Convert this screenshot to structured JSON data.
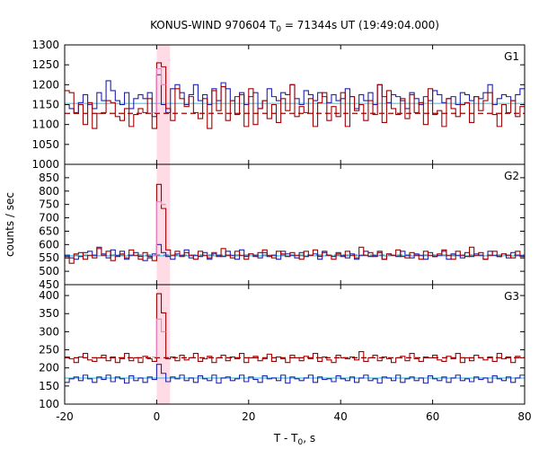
{
  "chart_data": {
    "type": "line",
    "title": {
      "main": "KONUS-WIND 970604 T",
      "sub": "0",
      "rest": " = 71344s UT (19:49:04.000)"
    },
    "xlabel": {
      "main": "T - T",
      "sub": "0",
      "rest": ", s"
    },
    "ylabel": "counts / sec",
    "xlim": [
      -20,
      80
    ],
    "xticks": [
      -20,
      0,
      20,
      40,
      60,
      80
    ],
    "bin_width": 1.0,
    "highlight_interval": [
      0.0,
      2.9
    ],
    "colors": {
      "red_series": "#a00000",
      "blue_series": "#2020b0",
      "cyan_line": "#40c8e8",
      "highlight": "#ffd0dc",
      "pink_series": "#f080c0"
    },
    "panels": [
      {
        "label": "G1",
        "ylim": [
          1000,
          1300
        ],
        "yticks": [
          1000,
          1050,
          1100,
          1150,
          1200,
          1250,
          1300
        ],
        "bg_level_red": 1128,
        "bg_level_blue": 1153,
        "red_values": [
          1185,
          1180,
          1128,
          1150,
          1100,
          1155,
          1090,
          1128,
          1130,
          1160,
          1155,
          1120,
          1110,
          1140,
          1095,
          1125,
          1140,
          1130,
          1165,
          1090,
          1255,
          1245,
          1140,
          1110,
          1190,
          1165,
          1145,
          1170,
          1130,
          1115,
          1165,
          1090,
          1185,
          1135,
          1195,
          1110,
          1160,
          1125,
          1175,
          1095,
          1190,
          1100,
          1140,
          1160,
          1115,
          1150,
          1105,
          1165,
          1135,
          1200,
          1120,
          1145,
          1130,
          1165,
          1095,
          1155,
          1180,
          1110,
          1145,
          1120,
          1180,
          1095,
          1170,
          1135,
          1150,
          1110,
          1160,
          1125,
          1200,
          1105,
          1185,
          1140,
          1125,
          1165,
          1115,
          1175,
          1130,
          1155,
          1100,
          1190,
          1125,
          1135,
          1095,
          1165,
          1140,
          1120,
          1150,
          1155,
          1105,
          1170,
          1135,
          1160,
          1180,
          1125,
          1095,
          1150,
          1130,
          1160,
          1120,
          1145
        ],
        "blue_values": [
          1150,
          1140,
          1130,
          1155,
          1175,
          1150,
          1140,
          1180,
          1160,
          1210,
          1185,
          1160,
          1150,
          1180,
          1140,
          1165,
          1175,
          1165,
          1180,
          1120,
          1225,
          1150,
          1130,
          1190,
          1200,
          1180,
          1150,
          1175,
          1200,
          1160,
          1175,
          1150,
          1190,
          1160,
          1205,
          1190,
          1160,
          1170,
          1180,
          1150,
          1170,
          1180,
          1140,
          1160,
          1190,
          1170,
          1160,
          1180,
          1175,
          1200,
          1165,
          1150,
          1185,
          1175,
          1160,
          1180,
          1170,
          1155,
          1175,
          1160,
          1165,
          1190,
          1170,
          1140,
          1175,
          1160,
          1180,
          1150,
          1200,
          1170,
          1155,
          1175,
          1170,
          1160,
          1140,
          1180,
          1165,
          1150,
          1170,
          1160,
          1185,
          1175,
          1155,
          1165,
          1170,
          1150,
          1180,
          1175,
          1160,
          1170,
          1165,
          1180,
          1200,
          1150,
          1165,
          1175,
          1170,
          1160,
          1175,
          1190
        ],
        "pink_values": [
          1130,
          1240,
          1200
        ]
      },
      {
        "label": "G2",
        "ylim": [
          450,
          900
        ],
        "yticks": [
          450,
          500,
          550,
          600,
          650,
          700,
          750,
          800,
          850
        ],
        "bg_level_red": 560,
        "bg_level_blue": 558,
        "red_values": [
          555,
          530,
          565,
          570,
          545,
          560,
          550,
          585,
          560,
          575,
          540,
          555,
          565,
          550,
          580,
          560,
          545,
          570,
          555,
          540,
          825,
          735,
          580,
          560,
          575,
          555,
          570,
          560,
          545,
          575,
          560,
          550,
          570,
          555,
          585,
          560,
          550,
          575,
          560,
          545,
          565,
          555,
          570,
          580,
          560,
          550,
          575,
          565,
          555,
          570,
          560,
          545,
          575,
          560,
          580,
          555,
          570,
          560,
          545,
          565,
          555,
          575,
          560,
          550,
          590,
          560,
          570,
          555,
          575,
          545,
          565,
          560,
          580,
          555,
          550,
          570,
          560,
          545,
          575,
          560,
          555,
          565,
          580,
          560,
          545,
          575,
          560,
          555,
          590,
          560,
          570,
          545,
          560,
          575,
          555,
          565,
          560,
          550,
          575,
          555
        ],
        "blue_values": [
          560,
          550,
          545,
          555,
          570,
          575,
          560,
          590,
          565,
          550,
          580,
          560,
          575,
          545,
          560,
          570,
          555,
          540,
          550,
          565,
          600,
          570,
          555,
          545,
          565,
          560,
          580,
          550,
          560,
          555,
          570,
          545,
          565,
          560,
          555,
          575,
          560,
          545,
          580,
          555,
          565,
          560,
          550,
          570,
          555,
          560,
          545,
          575,
          565,
          560,
          550,
          570,
          555,
          560,
          565,
          545,
          575,
          560,
          555,
          570,
          560,
          550,
          565,
          545,
          560,
          575,
          555,
          560,
          570,
          545,
          565,
          560,
          555,
          575,
          560,
          550,
          565,
          560,
          545,
          570,
          555,
          560,
          575,
          545,
          565,
          560,
          550,
          570,
          555,
          565,
          560,
          545,
          575,
          560,
          555,
          565,
          550,
          570,
          560,
          560
        ],
        "pink_values": [
          560,
          760,
          750
        ]
      },
      {
        "label": "G3",
        "ylim": [
          100,
          430
        ],
        "yticks": [
          100,
          150,
          200,
          250,
          300,
          350,
          400
        ],
        "bg_level_red": 228,
        "bg_level_blue": 172,
        "red_values": [
          230,
          225,
          215,
          230,
          240,
          222,
          218,
          228,
          235,
          220,
          230,
          215,
          225,
          240,
          220,
          228,
          215,
          232,
          225,
          218,
          405,
          352,
          225,
          230,
          220,
          235,
          222,
          228,
          240,
          218,
          225,
          232,
          215,
          228,
          235,
          220,
          230,
          225,
          240,
          215,
          228,
          232,
          220,
          225,
          238,
          218,
          230,
          225,
          215,
          235,
          228,
          220,
          232,
          225,
          240,
          218,
          230,
          222,
          215,
          235,
          228,
          225,
          230,
          222,
          245,
          218,
          228,
          235,
          220,
          230,
          225,
          215,
          228,
          232,
          220,
          240,
          225,
          218,
          230,
          228,
          235,
          222,
          218,
          232,
          225,
          240,
          215,
          228,
          220,
          235,
          228,
          222,
          230,
          218,
          240,
          225,
          230,
          215,
          232,
          228
        ],
        "blue_values": [
          160,
          170,
          175,
          165,
          180,
          170,
          160,
          175,
          168,
          180,
          162,
          175,
          170,
          158,
          178,
          165,
          172,
          160,
          175,
          168,
          210,
          185,
          162,
          175,
          170,
          180,
          165,
          172,
          160,
          178,
          170,
          165,
          180,
          158,
          172,
          175,
          165,
          170,
          180,
          162,
          175,
          168,
          160,
          178,
          170,
          172,
          165,
          180,
          158,
          175,
          170,
          165,
          172,
          180,
          160,
          175,
          168,
          170,
          162,
          178,
          170,
          165,
          175,
          160,
          172,
          180,
          165,
          170,
          158,
          175,
          172,
          165,
          180,
          160,
          170,
          175,
          165,
          172,
          158,
          178,
          170,
          165,
          175,
          160,
          172,
          180,
          165,
          170,
          162,
          175,
          168,
          172,
          160,
          178,
          170,
          165,
          175,
          160,
          172,
          180
        ],
        "pink_values": [
          230,
          335,
          300
        ]
      }
    ]
  }
}
